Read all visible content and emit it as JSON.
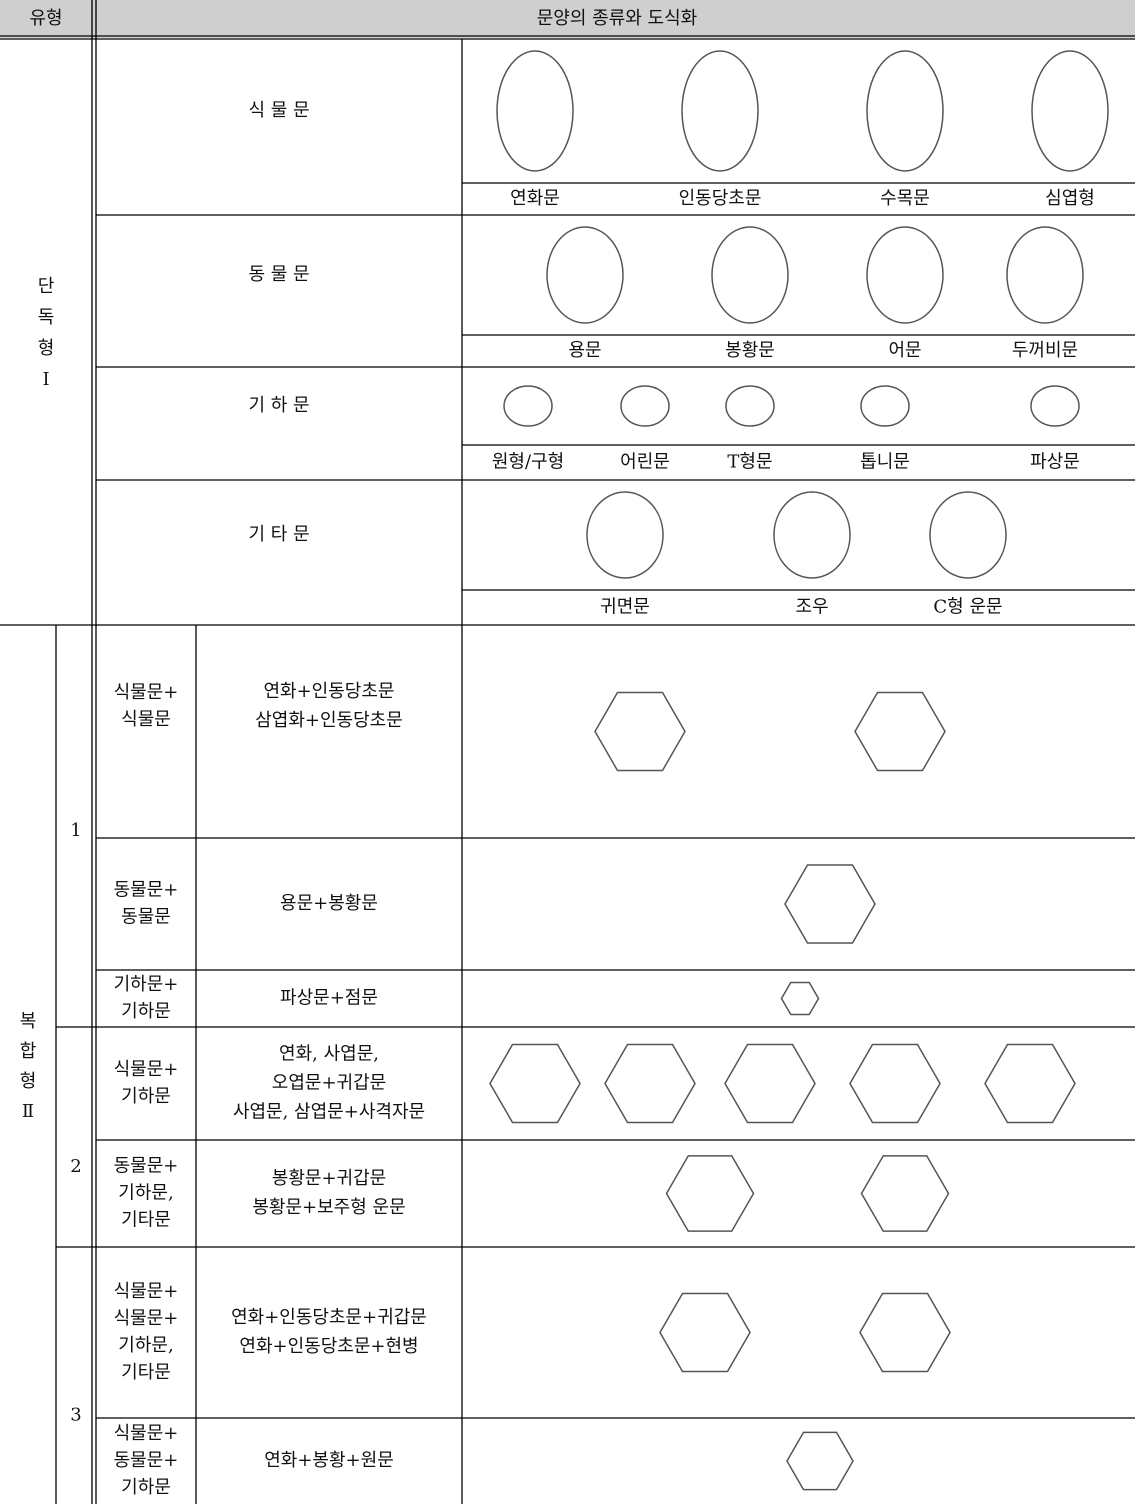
{
  "header": {
    "type_label": "유형",
    "content_label": "문양의 종류와 도식화"
  },
  "single": {
    "label_lines": [
      "단",
      "독",
      "형",
      "Ⅰ"
    ],
    "rows": [
      {
        "name": "식 물 문",
        "items": [
          "연화문",
          "인동당초문",
          "수목문",
          "심엽형"
        ]
      },
      {
        "name": "동 물 문",
        "items": [
          "용문",
          "봉황문",
          "어문",
          "두꺼비문"
        ]
      },
      {
        "name": "기 하 문",
        "items": [
          "원형/구형",
          "어린문",
          "T형문",
          "톱니문",
          "파상문"
        ]
      },
      {
        "name": "기 타 문",
        "items": [
          "귀면문",
          "조우",
          "C형 운문"
        ]
      }
    ]
  },
  "composite": {
    "label_lines": [
      "복",
      "합",
      "형",
      "Ⅱ"
    ],
    "groups": [
      {
        "number": "1",
        "rows": [
          {
            "category_lines": [
              "식물문+",
              "식물문"
            ],
            "description_lines": [
              "연화+인동당초문",
              "삼엽화+인동당초문"
            ]
          },
          {
            "category_lines": [
              "동물문+",
              "동물문"
            ],
            "description_lines": [
              "용문+봉황문"
            ]
          },
          {
            "category_lines": [
              "기하문+",
              "기하문"
            ],
            "description_lines": [
              "파상문+점문"
            ]
          }
        ]
      },
      {
        "number": "2",
        "rows": [
          {
            "category_lines": [
              "식물문+",
              "기하문"
            ],
            "description_lines": [
              "연화, 사엽문,",
              "오엽문+귀갑문",
              "사엽문, 삼엽문+사격자문"
            ]
          },
          {
            "category_lines": [
              "동물문+",
              "기하문,",
              "기타문"
            ],
            "description_lines": [
              "봉황문+귀갑문",
              "봉황문+보주형 운문"
            ]
          }
        ]
      },
      {
        "number": "3",
        "rows": [
          {
            "category_lines": [
              "식물문+",
              "식물문+",
              "기하문,",
              "기타문"
            ],
            "description_lines": [
              "연화+인동당초문+귀갑문",
              "연화+인동당초문+현병"
            ]
          },
          {
            "category_lines": [
              "식물문+",
              "동물문+",
              "기하문"
            ],
            "description_lines": [
              "연화+봉황+원문"
            ]
          }
        ]
      }
    ]
  }
}
